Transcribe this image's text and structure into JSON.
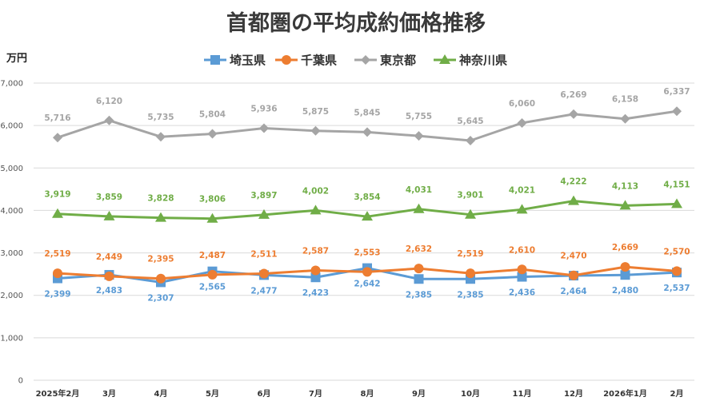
{
  "chart_data": {
    "type": "line",
    "title": "首都圏の平均成約価格推移",
    "ylabel": "万円",
    "xlabel": "",
    "ylim": [
      0,
      7000
    ],
    "yticks": [
      "0",
      "1,000",
      "2,000",
      "3,000",
      "4,000",
      "5,000",
      "6,000",
      "7,000"
    ],
    "categories": [
      "2025年2月",
      "3月",
      "4月",
      "5月",
      "6月",
      "7月",
      "8月",
      "9月",
      "10月",
      "11月",
      "12月",
      "2026年1月",
      "2月"
    ],
    "legend_position": "top",
    "series": [
      {
        "name": "埼玉県",
        "color": "#5b9bd5",
        "marker": "square",
        "label_position": "below",
        "values": [
          2399,
          2483,
          2307,
          2565,
          2477,
          2423,
          2642,
          2385,
          2385,
          2436,
          2464,
          2480,
          2537
        ],
        "labels": [
          "2,399",
          "2,483",
          "2,307",
          "2,565",
          "2,477",
          "2,423",
          "2,642",
          "2,385",
          "2,385",
          "2,436",
          "2,464",
          "2,480",
          "2,537"
        ]
      },
      {
        "name": "千葉県",
        "color": "#ed7d31",
        "marker": "circle",
        "label_position": "above",
        "values": [
          2519,
          2449,
          2395,
          2487,
          2511,
          2587,
          2553,
          2632,
          2519,
          2610,
          2470,
          2669,
          2570
        ],
        "labels": [
          "2,519",
          "2,449",
          "2,395",
          "2,487",
          "2,511",
          "2,587",
          "2,553",
          "2,632",
          "2,519",
          "2,610",
          "2,470",
          "2,669",
          "2,570"
        ]
      },
      {
        "name": "東京都",
        "color": "#a5a5a5",
        "marker": "diamond",
        "label_position": "above",
        "values": [
          5716,
          6120,
          5735,
          5804,
          5936,
          5875,
          5845,
          5755,
          5645,
          6060,
          6269,
          6158,
          6337
        ],
        "labels": [
          "5,716",
          "6,120",
          "5,735",
          "5,804",
          "5,936",
          "5,875",
          "5,845",
          "5,755",
          "5,645",
          "6,060",
          "6,269",
          "6,158",
          "6,337"
        ]
      },
      {
        "name": "神奈川県",
        "color": "#70ad47",
        "marker": "triangle",
        "label_position": "above",
        "values": [
          3919,
          3859,
          3828,
          3806,
          3897,
          4002,
          3854,
          4031,
          3901,
          4021,
          4222,
          4113,
          4151
        ],
        "labels": [
          "3,919",
          "3,859",
          "3,828",
          "3,806",
          "3,897",
          "4,002",
          "3,854",
          "4,031",
          "3,901",
          "4,021",
          "4,222",
          "4,113",
          "4,151"
        ]
      }
    ]
  }
}
